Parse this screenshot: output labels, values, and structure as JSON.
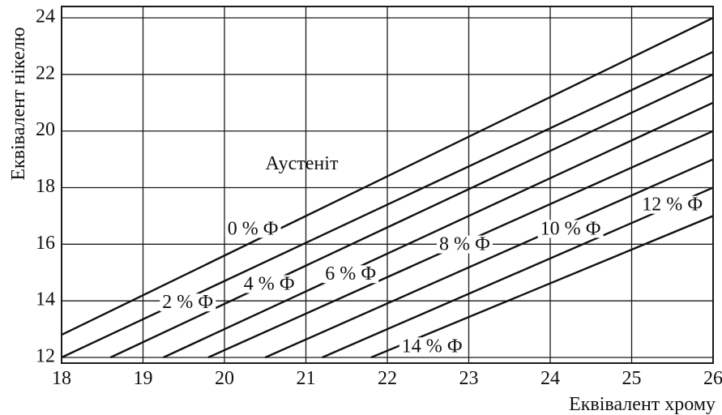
{
  "chart_data": {
    "type": "line",
    "xlabel": "Еквівалент хрому",
    "ylabel": "Еквівалент нікелю",
    "xlim": [
      18,
      26
    ],
    "ylim": [
      11.8,
      24.4
    ],
    "xticks": [
      18,
      19,
      20,
      21,
      22,
      23,
      24,
      25,
      26
    ],
    "yticks": [
      12,
      14,
      16,
      18,
      20,
      22,
      24
    ],
    "grid": true,
    "region_label": "Аустеніт",
    "series": [
      {
        "name": "0 % Ф",
        "x": [
          18,
          26
        ],
        "y": [
          12.8,
          24.0
        ]
      },
      {
        "name": "2 % Ф",
        "x": [
          18,
          26
        ],
        "y": [
          12.0,
          22.8
        ]
      },
      {
        "name": "4 % Ф",
        "x": [
          18.6,
          26
        ],
        "y": [
          12.0,
          22.0
        ]
      },
      {
        "name": "6 % Ф",
        "x": [
          19.25,
          26
        ],
        "y": [
          12.0,
          21.0
        ]
      },
      {
        "name": "8 % Ф",
        "x": [
          19.8,
          26
        ],
        "y": [
          12.0,
          20.0
        ]
      },
      {
        "name": "10 % Ф",
        "x": [
          20.5,
          26
        ],
        "y": [
          12.0,
          19.0
        ]
      },
      {
        "name": "12 % Ф",
        "x": [
          21.2,
          26
        ],
        "y": [
          12.0,
          18.0
        ]
      },
      {
        "name": "14 % Ф",
        "x": [
          21.8,
          26
        ],
        "y": [
          12.0,
          17.0
        ]
      }
    ],
    "annotations": [
      {
        "text": "Аустеніт",
        "x": 20.95,
        "y": 18.8
      },
      {
        "text": "0 % Ф",
        "x": 20.35,
        "y": 16.5
      },
      {
        "text": "2 % Ф",
        "x": 19.55,
        "y": 13.9
      },
      {
        "text": "4 % Ф",
        "x": 20.55,
        "y": 14.55
      },
      {
        "text": "6 % Ф",
        "x": 21.55,
        "y": 14.9
      },
      {
        "text": "8 % Ф",
        "x": 22.95,
        "y": 15.95
      },
      {
        "text": "10 % Ф",
        "x": 24.25,
        "y": 16.5
      },
      {
        "text": "12 % Ф",
        "x": 25.5,
        "y": 17.35
      },
      {
        "text": "14 % Ф",
        "x": 22.55,
        "y": 12.35
      }
    ]
  }
}
